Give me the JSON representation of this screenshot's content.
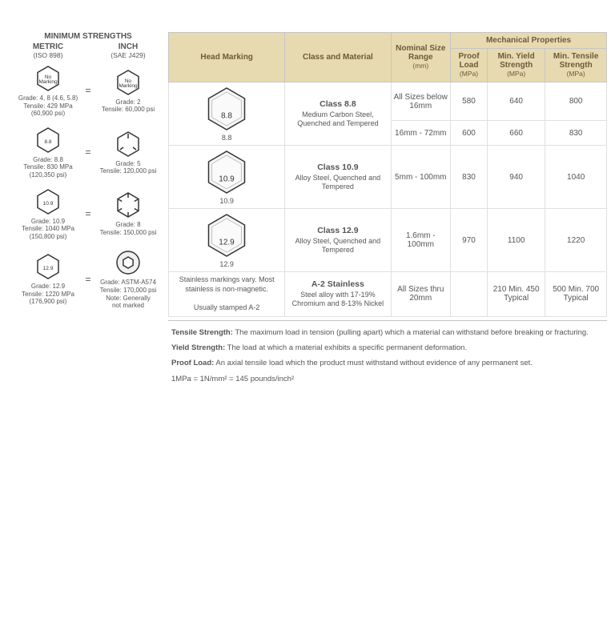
{
  "left": {
    "title": "MINIMUM STRENGTHS",
    "metric_label": "METRIC",
    "metric_sub": "(ISO 898)",
    "inch_label": "INCH",
    "inch_sub": "(SAE J429)",
    "rows": [
      {
        "metric_mark": "No Marking",
        "metric_info": "Grade: 4, 8 (4.6, 5.8)\nTensile: 429 MPa\n(60,900 psi)",
        "inch_mark": "No Marking",
        "inch_info": "Grade: 2\nTensile: 60,000 psi"
      },
      {
        "metric_mark": "8.8",
        "metric_info": "Grade: 8.8\nTensile: 830 MPa\n(120,350 psi)",
        "inch_lines": 3,
        "inch_info": "Grade: 5\nTensile: 120,000 psi"
      },
      {
        "metric_mark": "10.9",
        "metric_info": "Grade: 10.9\nTensile: 1040 MPa\n(150,800 psi)",
        "inch_lines": 6,
        "inch_info": "Grade: 8\nTensile: 150,000 psi"
      },
      {
        "metric_mark": "12.9",
        "metric_info": "Grade: 12.9\nTensile: 1220 MPa\n(176,900 psi)",
        "inch_socket": true,
        "inch_info": "Grade: ASTM-A574\nTensile: 170,000 psi\nNote: Generally\nnot marked"
      }
    ]
  },
  "table": {
    "headers": {
      "head_marking": "Head Marking",
      "class_material": "Class and Material",
      "nominal": "Nominal Size Range",
      "nominal_unit": "(mm)",
      "mech": "Mechanical Properties",
      "proof": "Proof Load",
      "proof_unit": "(MPa)",
      "yield": "Min. Yield Strength",
      "yield_unit": "(MPa)",
      "tensile": "Min. Tensile Strength",
      "tensile_unit": "(MPa)"
    },
    "rows": [
      {
        "mark": "8.8",
        "class_name": "Class 8.8",
        "material": "Medium Carbon Steel, Quenched and Tempered",
        "sizes": [
          {
            "range": "All Sizes below 16mm",
            "proof": "580",
            "yield": "640",
            "tensile": "800"
          },
          {
            "range": "16mm - 72mm",
            "proof": "600",
            "yield": "660",
            "tensile": "830"
          }
        ]
      },
      {
        "mark": "10.9",
        "class_name": "Class 10.9",
        "material": "Alloy Steel, Quenched and Tempered",
        "sizes": [
          {
            "range": "5mm - 100mm",
            "proof": "830",
            "yield": "940",
            "tensile": "1040"
          }
        ]
      },
      {
        "mark": "12.9",
        "class_name": "Class 12.9",
        "material": "Alloy Steel, Quenched and Tempered",
        "sizes": [
          {
            "range": "1.6mm - 100mm",
            "proof": "970",
            "yield": "1100",
            "tensile": "1220"
          }
        ]
      },
      {
        "stainless_note": "Stainless markings vary. Most stainless is non-magnetic.\n\nUsually stamped A-2",
        "class_name": "A-2 Stainless",
        "material": "Steel alloy with 17-19% Chromium and 8-13% Nickel",
        "sizes": [
          {
            "range": "All Sizes thru 20mm",
            "proof": "",
            "yield": "210 Min. 450 Typical",
            "tensile": "500 Min. 700 Typical"
          }
        ]
      }
    ]
  },
  "defs": {
    "tensile_label": "Tensile Strength:",
    "tensile": " The maximum load in tension (pulling apart) which a material can withstand before breaking or fracturing.",
    "yield_label": "Yield Strength:",
    "yield": " The load at which a material exhibits a specific permanent deformation.",
    "proof_label": "Proof Load:",
    "proof": " An axial tensile load which the product must withstand without evidence of any permanent set.",
    "conv": "1MPa = 1N/mm² = 145 pounds/inch²"
  }
}
